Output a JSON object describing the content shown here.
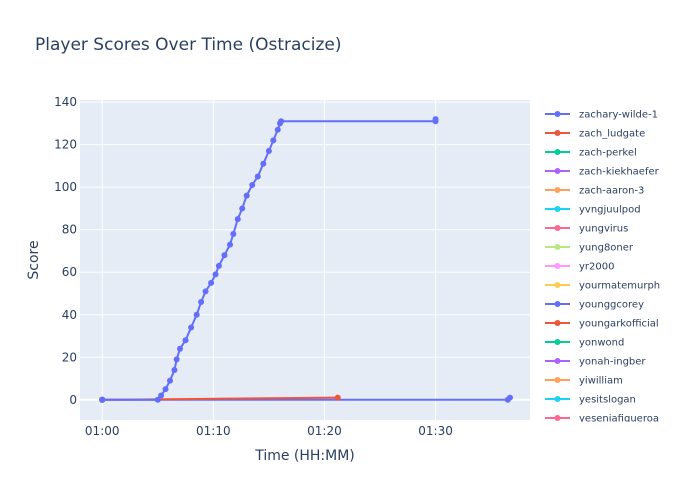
{
  "chart_data": {
    "type": "line",
    "title": "Player Scores Over Time (Ostracize)",
    "xlabel": "Time (HH:MM)",
    "ylabel": "Score",
    "x_tick_labels": [
      "01:00",
      "01:10",
      "01:20",
      "01:30"
    ],
    "x_tick_values_minutes": [
      60,
      70,
      80,
      90
    ],
    "xlim_minutes": [
      58,
      98.5
    ],
    "ylim": [
      -9.5,
      141
    ],
    "y_ticks": [
      0,
      20,
      40,
      60,
      80,
      100,
      120,
      140
    ],
    "grid": true,
    "legend_placement": "right",
    "background_color": "#e5ecf6",
    "series": [
      {
        "name": "zachary-wilde-1",
        "color": "#636efa",
        "points": [
          [
            60,
            0
          ],
          [
            65,
            0
          ],
          [
            65.3,
            2
          ],
          [
            65.7,
            5
          ],
          [
            66.1,
            9
          ],
          [
            66.5,
            14
          ],
          [
            66.7,
            19
          ],
          [
            67.0,
            24
          ],
          [
            67.5,
            28
          ],
          [
            68.0,
            34
          ],
          [
            68.5,
            40
          ],
          [
            68.9,
            46
          ],
          [
            69.3,
            51
          ],
          [
            69.8,
            55
          ],
          [
            70.2,
            59
          ],
          [
            70.5,
            63
          ],
          [
            71.0,
            68
          ],
          [
            71.5,
            73
          ],
          [
            71.8,
            78
          ],
          [
            72.2,
            85
          ],
          [
            72.6,
            90
          ],
          [
            73.0,
            96
          ],
          [
            73.5,
            101
          ],
          [
            74.0,
            105
          ],
          [
            74.5,
            111
          ],
          [
            75.0,
            117
          ],
          [
            75.4,
            122
          ],
          [
            75.8,
            127
          ],
          [
            76.0,
            130
          ],
          [
            76.1,
            131
          ],
          [
            90,
            131
          ],
          [
            90.0,
            132
          ]
        ]
      },
      {
        "name": "zach_ludgate",
        "color": "#ef553b",
        "points": [
          [
            60,
            0
          ],
          [
            81.2,
            1
          ]
        ]
      },
      {
        "name": "zach-perkel",
        "color": "#00cc96",
        "points": [
          [
            60,
            0
          ]
        ]
      },
      {
        "name": "zach-kiekhaefer",
        "color": "#ab63fa",
        "points": [
          [
            60,
            0
          ]
        ]
      },
      {
        "name": "zach-aaron-3",
        "color": "#ffa15a",
        "points": [
          [
            60,
            0
          ]
        ]
      },
      {
        "name": "yvngjuulpod",
        "color": "#19d3f3",
        "points": [
          [
            60,
            0
          ]
        ]
      },
      {
        "name": "yungvirus",
        "color": "#ff6692",
        "points": [
          [
            60,
            0
          ]
        ]
      },
      {
        "name": "yung8oner",
        "color": "#b6e880",
        "points": [
          [
            60,
            0
          ]
        ]
      },
      {
        "name": "yr2000",
        "color": "#ff97ff",
        "points": [
          [
            60,
            0
          ]
        ]
      },
      {
        "name": "yourmatemurph",
        "color": "#fecb52",
        "points": [
          [
            60,
            0
          ]
        ]
      },
      {
        "name": "younggcorey",
        "color": "#636efa",
        "points": [
          [
            60,
            0
          ],
          [
            96.5,
            0
          ],
          [
            96.7,
            1
          ]
        ]
      },
      {
        "name": "youngarkofficial",
        "color": "#ef553b",
        "points": [
          [
            60,
            0
          ]
        ]
      },
      {
        "name": "yonwond",
        "color": "#00cc96",
        "points": [
          [
            60,
            0
          ]
        ]
      },
      {
        "name": "yonah-ingber",
        "color": "#ab63fa",
        "points": [
          [
            60,
            0
          ]
        ]
      },
      {
        "name": "yiwilliam",
        "color": "#ffa15a",
        "points": [
          [
            60,
            0
          ]
        ]
      },
      {
        "name": "yesitslogan",
        "color": "#19d3f3",
        "points": [
          [
            60,
            0
          ]
        ]
      },
      {
        "name": "yeseniafigueroa",
        "color": "#ff6692",
        "points": [
          [
            60,
            0
          ]
        ]
      }
    ]
  }
}
